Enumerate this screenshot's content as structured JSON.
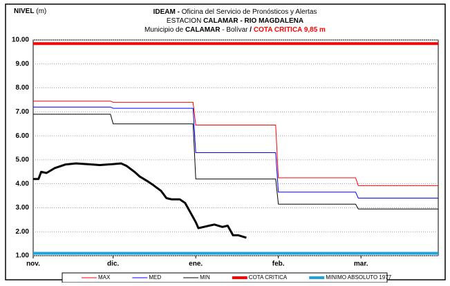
{
  "chart_data": {
    "type": "line",
    "title_lines": [
      [
        "IDEAM -",
        " Oficina del Servicio de Pronósticos y Alertas"
      ],
      [
        "ESTACION ",
        "CALAMAR - RIO MAGDALENA"
      ],
      [
        "Municipio de ",
        "CALAMAR",
        " - Bolívar ",
        " / ",
        " COTA CRITICA 9,85 m"
      ]
    ],
    "y_label": "NIVEL",
    "y_unit": "(m)",
    "xlim": [
      0,
      152
    ],
    "xticks": [
      {
        "value": 0,
        "label": "nov."
      },
      {
        "value": 30,
        "label": "dic."
      },
      {
        "value": 61,
        "label": "ene."
      },
      {
        "value": 92,
        "label": "feb."
      },
      {
        "value": 123,
        "label": "mar."
      }
    ],
    "ylim": [
      1,
      10
    ],
    "yticks": [
      {
        "value": 1,
        "label": "1.00"
      },
      {
        "value": 2,
        "label": "2.00"
      },
      {
        "value": 3,
        "label": "3.00"
      },
      {
        "value": 4,
        "label": "4.00"
      },
      {
        "value": 5,
        "label": "5.00"
      },
      {
        "value": 6,
        "label": "6.00"
      },
      {
        "value": 7,
        "label": "7.00"
      },
      {
        "value": 8,
        "label": "8.00"
      },
      {
        "value": 9,
        "label": "9.00"
      },
      {
        "value": 10,
        "label": "10.00"
      }
    ],
    "grid": true,
    "series": [
      {
        "name": "MAX",
        "color": "#ff0000",
        "width": 1,
        "x": [
          0,
          29,
          30,
          60,
          61,
          91,
          92,
          121,
          122,
          152
        ],
        "values": [
          7.45,
          7.45,
          7.4,
          7.4,
          6.45,
          6.45,
          4.25,
          4.25,
          3.92,
          3.92
        ]
      },
      {
        "name": "MED",
        "color": "#0000ff",
        "width": 1,
        "x": [
          0,
          29,
          30,
          60,
          61,
          91,
          92,
          121,
          122,
          152
        ],
        "values": [
          7.2,
          7.2,
          7.15,
          7.15,
          5.3,
          5.3,
          3.65,
          3.65,
          3.4,
          3.4
        ]
      },
      {
        "name": "MIN",
        "color": "#000000",
        "width": 1,
        "x": [
          0,
          29,
          30,
          60,
          61,
          91,
          92,
          121,
          122,
          152
        ],
        "values": [
          6.9,
          6.9,
          6.5,
          6.5,
          4.2,
          4.2,
          3.15,
          3.15,
          2.95,
          2.95
        ]
      },
      {
        "name": "COTA CRITICA",
        "color": "#ff0000",
        "width": 4,
        "x": [
          0,
          152
        ],
        "values": [
          9.85,
          9.85
        ]
      },
      {
        "name": "MINIMO ABSOLUTO 1977",
        "color": "#1ca3dc",
        "width": 4,
        "x": [
          0,
          152
        ],
        "values": [
          1.1,
          1.1
        ]
      },
      {
        "color": "#000000",
        "width": 3,
        "x": [
          0,
          2,
          3,
          5,
          8,
          12,
          16,
          20,
          25,
          30,
          33,
          35,
          38,
          40,
          43,
          45,
          48,
          50,
          52,
          55,
          57,
          59,
          61,
          62,
          64,
          66,
          68,
          71,
          73,
          75,
          77,
          80
        ],
        "values": [
          4.2,
          4.2,
          4.5,
          4.45,
          4.65,
          4.8,
          4.85,
          4.82,
          4.78,
          4.82,
          4.85,
          4.75,
          4.5,
          4.3,
          4.1,
          3.95,
          3.7,
          3.4,
          3.35,
          3.35,
          3.2,
          2.8,
          2.4,
          2.15,
          2.2,
          2.25,
          2.3,
          2.2,
          2.25,
          1.85,
          1.85,
          1.75
        ]
      }
    ]
  }
}
